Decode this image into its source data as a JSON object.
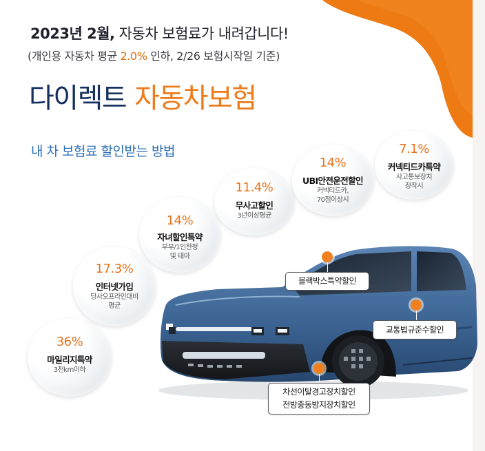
{
  "headline": {
    "bold": "2023년 2월,",
    "rest": " 자동차 보험료가 내려갑니다!"
  },
  "subline": {
    "before": "(개인용 자동차 평균 ",
    "highlight": "2.0%",
    "after": " 인하, 2/26 보험시작일 기준)"
  },
  "brand": {
    "part1": "다이렉트",
    "part2": "자동차보험"
  },
  "section_title": "내 차 보험료 할인받는 방법",
  "discounts": [
    {
      "percent": "36%",
      "name": "마일리지특약",
      "note": "3천km이하"
    },
    {
      "percent": "17.3%",
      "name": "인터넷가입",
      "note1": "당사오프라인대비",
      "note2": "평균"
    },
    {
      "percent": "14%",
      "name": "자녀할인특약",
      "note1": "부부/1인한정",
      "note2": "및 태아"
    },
    {
      "percent": "11.4%",
      "name": "무사고할인",
      "note": "3년이상평균"
    },
    {
      "percent": "14%",
      "name": "UBI안전운전할인",
      "note1": "커넥티드카,",
      "note2": "70점이상시"
    },
    {
      "percent": "7.1%",
      "name": "커넥티드카특약",
      "note1": "사고통보장치",
      "note2": "장착시"
    }
  ],
  "callouts": {
    "blackbox": "블랙박스특약할인",
    "traffic": "교통법규준수할인",
    "lane_line1": "차선이탈경고장치할인",
    "lane_line2": "전방충동방지장치할인"
  },
  "colors": {
    "accent_orange": "#ef7a1a",
    "navy": "#16305e",
    "section_blue": "#2c6fb4",
    "car_body": "#3f6796"
  }
}
